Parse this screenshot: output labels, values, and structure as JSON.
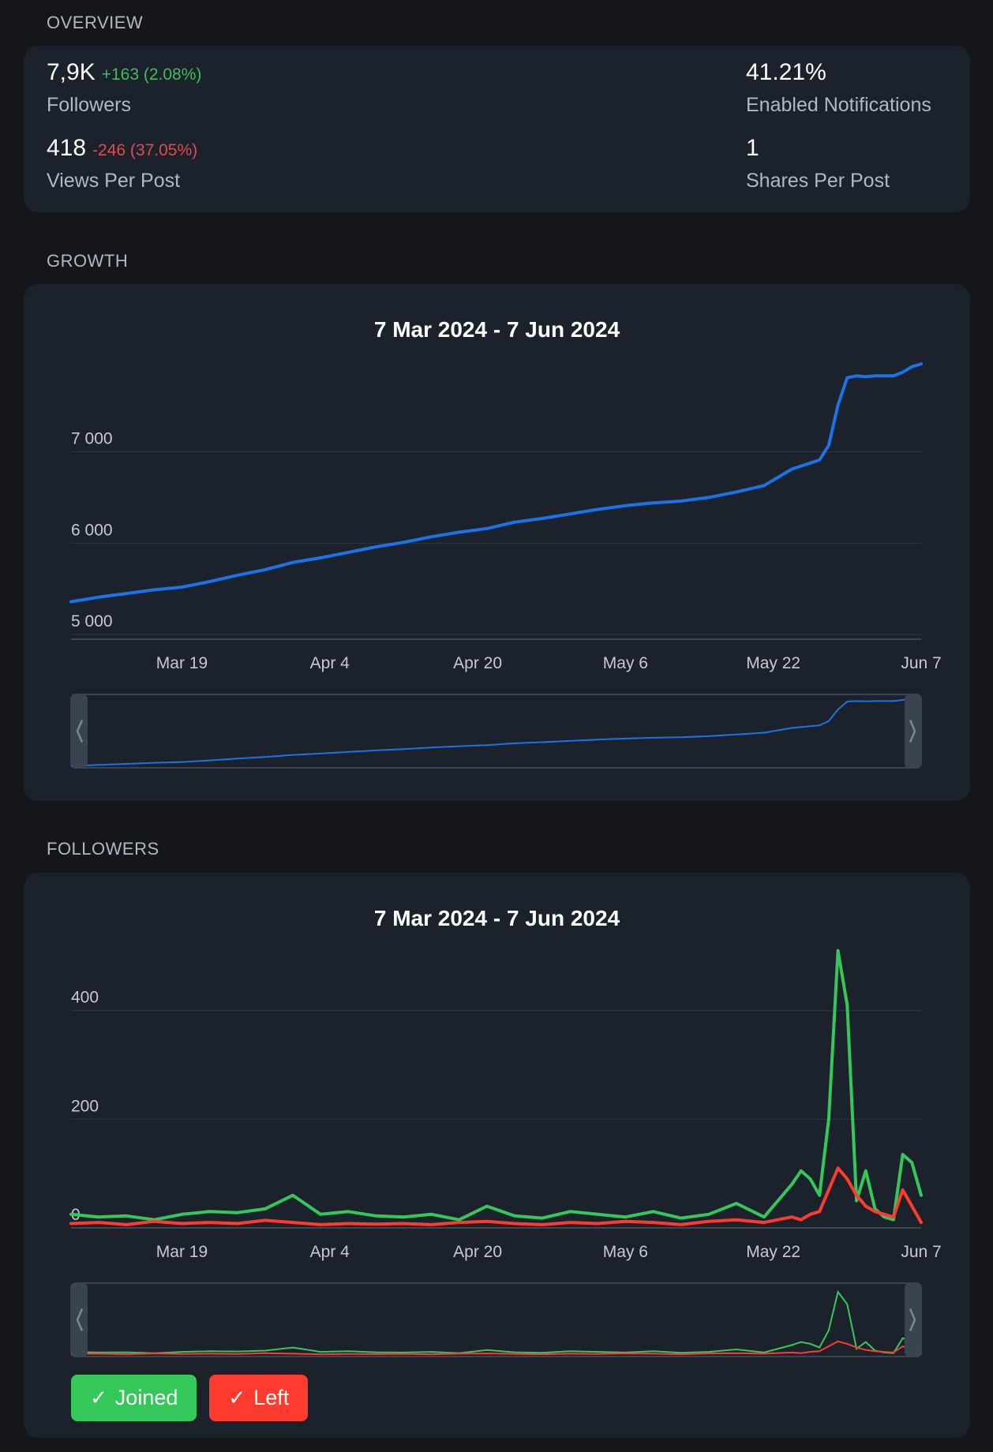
{
  "overview": {
    "section_label": "OVERVIEW",
    "followers": {
      "value": "7,9K",
      "delta": "+163 (2.08%)",
      "label": "Followers"
    },
    "views_per_post": {
      "value": "418",
      "delta": "-246 (37.05%)",
      "label": "Views Per Post"
    },
    "enabled_notifications": {
      "value": "41.21%",
      "label": "Enabled Notifications"
    },
    "shares_per_post": {
      "value": "1",
      "label": "Shares Per Post"
    }
  },
  "growth": {
    "section_label": "GROWTH",
    "title": "7 Mar 2024 - 7 Jun 2024"
  },
  "followers_section": {
    "section_label": "FOLLOWERS",
    "title": "7 Mar 2024 - 7 Jun 2024",
    "legend": {
      "joined": "Joined",
      "left": "Left",
      "check": "✓"
    }
  },
  "colors": {
    "growth_line": "#1a73e8",
    "joined": "#34c759",
    "left": "#ff3b30",
    "up": "#3fbd59",
    "down": "#e5484d"
  },
  "chart_data": [
    {
      "type": "line",
      "title": "7 Mar 2024 - 7 Jun 2024",
      "xlabel": "",
      "ylabel": "",
      "x_tick_labels": [
        "Mar 19",
        "Apr 4",
        "Apr 20",
        "May 6",
        "May 22",
        "Jun 7"
      ],
      "y_tick_labels": [
        "5 000",
        "6 000",
        "7 000"
      ],
      "ylim": [
        4950,
        8100
      ],
      "grid": true,
      "x": [
        "Mar 7",
        "Mar 10",
        "Mar 13",
        "Mar 16",
        "Mar 19",
        "Mar 22",
        "Mar 25",
        "Mar 28",
        "Mar 31",
        "Apr 3",
        "Apr 6",
        "Apr 9",
        "Apr 12",
        "Apr 15",
        "Apr 18",
        "Apr 21",
        "Apr 24",
        "Apr 27",
        "Apr 30",
        "May 3",
        "May 6",
        "May 9",
        "May 12",
        "May 15",
        "May 18",
        "May 21",
        "May 24",
        "May 27",
        "May 28",
        "May 29",
        "May 30",
        "May 31",
        "Jun 1",
        "Jun 2",
        "Jun 3",
        "Jun 4",
        "Jun 5",
        "Jun 6",
        "Jun 7"
      ],
      "series": [
        {
          "values": [
            5360,
            5410,
            5450,
            5490,
            5520,
            5580,
            5650,
            5710,
            5790,
            5840,
            5900,
            5960,
            6010,
            6070,
            6120,
            6160,
            6230,
            6270,
            6320,
            6370,
            6410,
            6440,
            6460,
            6500,
            6560,
            6630,
            6810,
            6910,
            7070,
            7510,
            7810,
            7830,
            7820,
            7830,
            7830,
            7830,
            7870,
            7930,
            7960
          ]
        }
      ]
    },
    {
      "type": "line",
      "title": "7 Mar 2024 - 7 Jun 2024",
      "xlabel": "",
      "ylabel": "",
      "x_tick_labels": [
        "Mar 19",
        "Apr 4",
        "Apr 20",
        "May 6",
        "May 22",
        "Jun 7"
      ],
      "y_tick_labels": [
        "0",
        "200",
        "400"
      ],
      "ylim": [
        0,
        530
      ],
      "grid": true,
      "x": [
        "Mar 7",
        "Mar 10",
        "Mar 13",
        "Mar 16",
        "Mar 19",
        "Mar 22",
        "Mar 25",
        "Mar 28",
        "Mar 31",
        "Apr 3",
        "Apr 6",
        "Apr 9",
        "Apr 12",
        "Apr 15",
        "Apr 18",
        "Apr 21",
        "Apr 24",
        "Apr 27",
        "Apr 30",
        "May 3",
        "May 6",
        "May 9",
        "May 12",
        "May 15",
        "May 18",
        "May 21",
        "May 24",
        "May 25",
        "May 26",
        "May 27",
        "May 28",
        "May 29",
        "May 30",
        "May 31",
        "Jun 1",
        "Jun 2",
        "Jun 3",
        "Jun 4",
        "Jun 5",
        "Jun 6",
        "Jun 7"
      ],
      "series": [
        {
          "name": "Joined",
          "values": [
            25,
            20,
            22,
            15,
            25,
            30,
            28,
            35,
            60,
            25,
            30,
            22,
            20,
            25,
            15,
            40,
            22,
            18,
            30,
            25,
            20,
            30,
            18,
            25,
            45,
            20,
            80,
            105,
            90,
            60,
            200,
            510,
            410,
            50,
            105,
            35,
            20,
            15,
            135,
            120,
            60
          ]
        },
        {
          "name": "Left",
          "values": [
            8,
            10,
            6,
            12,
            8,
            10,
            8,
            14,
            10,
            6,
            8,
            7,
            8,
            6,
            10,
            12,
            8,
            6,
            10,
            8,
            12,
            10,
            6,
            12,
            15,
            10,
            20,
            15,
            25,
            30,
            70,
            110,
            90,
            60,
            40,
            30,
            25,
            20,
            70,
            40,
            10
          ]
        }
      ]
    }
  ]
}
